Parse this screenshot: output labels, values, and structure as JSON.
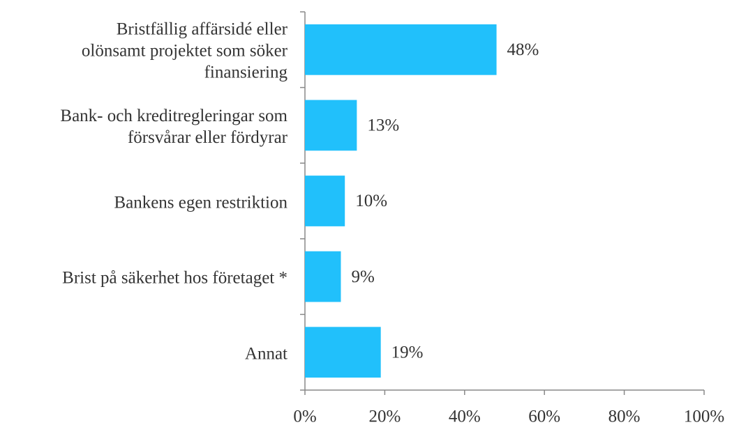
{
  "chart_data": {
    "type": "barh",
    "categories": [
      "Bristfällig affärsidé eller\nolönsamt projektet som söker\nfinansiering",
      "Bank- och kreditregleringar som\nförsvårar eller fördyrar",
      "Bankens egen restriktion",
      "Brist på säkerhet hos företaget *",
      "Annat"
    ],
    "values": [
      48,
      13,
      10,
      9,
      19
    ],
    "value_labels": [
      "48%",
      "13%",
      "10%",
      "9%",
      "19%"
    ],
    "color": "#21c0fb",
    "xlim": [
      0,
      100
    ],
    "xticks": [
      {
        "value": 0,
        "label": "0%"
      },
      {
        "value": 20,
        "label": "20%"
      },
      {
        "value": 40,
        "label": "40%"
      },
      {
        "value": 60,
        "label": "60%"
      },
      {
        "value": 80,
        "label": "80%"
      },
      {
        "value": 100,
        "label": "100%"
      }
    ],
    "grid": false
  }
}
